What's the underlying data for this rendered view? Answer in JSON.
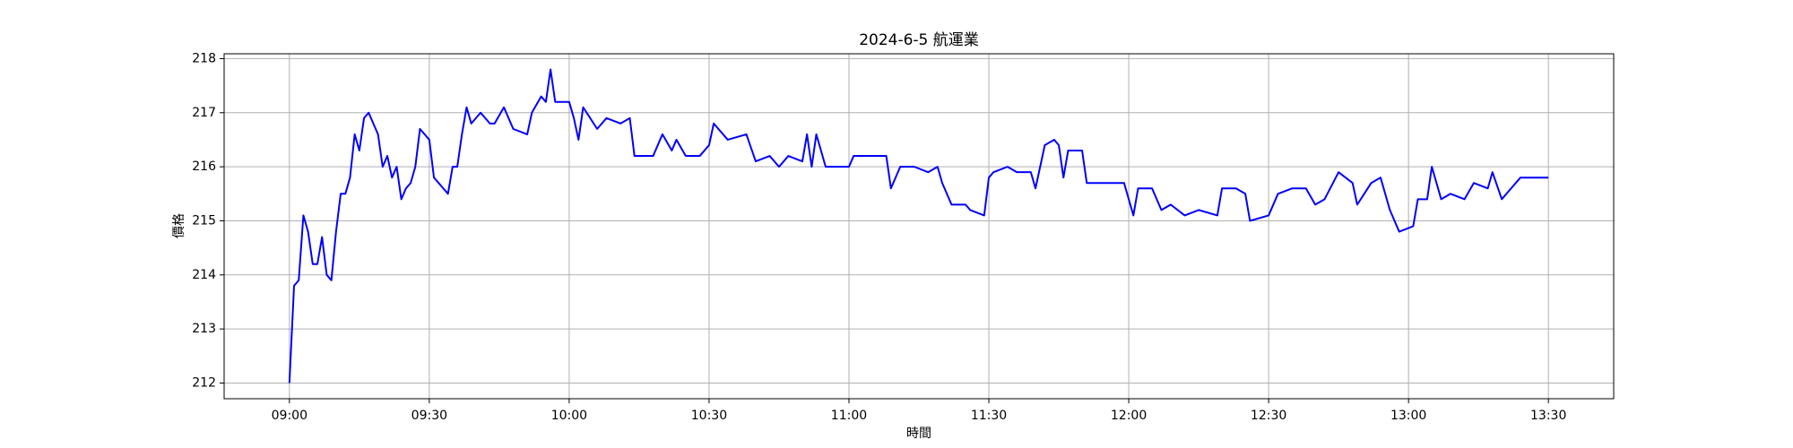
{
  "chart_data": {
    "type": "line",
    "title": "2024-6-5 航運業",
    "x_label": "時間",
    "y_label": "價格",
    "x": [
      "09:00",
      "09:01",
      "09:02",
      "09:03",
      "09:04",
      "09:05",
      "09:06",
      "09:07",
      "09:08",
      "09:09",
      "09:10",
      "09:11",
      "09:12",
      "09:13",
      "09:14",
      "09:15",
      "09:16",
      "09:17",
      "09:18",
      "09:19",
      "09:20",
      "09:21",
      "09:22",
      "09:23",
      "09:24",
      "09:25",
      "09:26",
      "09:27",
      "09:28",
      "09:30",
      "09:31",
      "09:33",
      "09:34",
      "09:35",
      "09:36",
      "09:37",
      "09:38",
      "09:39",
      "09:41",
      "09:43",
      "09:44",
      "09:46",
      "09:48",
      "09:51",
      "09:52",
      "09:54",
      "09:55",
      "09:56",
      "09:57",
      "10:00",
      "10:01",
      "10:02",
      "10:03",
      "10:06",
      "10:08",
      "10:11",
      "10:13",
      "10:14",
      "10:18",
      "10:20",
      "10:22",
      "10:23",
      "10:25",
      "10:28",
      "10:30",
      "10:31",
      "10:34",
      "10:38",
      "10:40",
      "10:43",
      "10:45",
      "10:47",
      "10:50",
      "10:51",
      "10:52",
      "10:53",
      "10:55",
      "11:00",
      "11:01",
      "11:04",
      "11:08",
      "11:09",
      "11:11",
      "11:14",
      "11:17",
      "11:19",
      "11:20",
      "11:22",
      "11:25",
      "11:26",
      "11:29",
      "11:30",
      "11:31",
      "11:34",
      "11:36",
      "11:39",
      "11:40",
      "11:42",
      "11:44",
      "11:45",
      "11:46",
      "11:47",
      "11:50",
      "11:51",
      "11:59",
      "12:01",
      "12:02",
      "12:05",
      "12:07",
      "12:09",
      "12:12",
      "12:15",
      "12:19",
      "12:20",
      "12:23",
      "12:25",
      "12:26",
      "12:30",
      "12:32",
      "12:35",
      "12:38",
      "12:40",
      "12:42",
      "12:45",
      "12:48",
      "12:49",
      "12:52",
      "12:54",
      "12:56",
      "12:58",
      "13:01",
      "13:02",
      "13:04",
      "13:05",
      "13:07",
      "13:09",
      "13:12",
      "13:14",
      "13:17",
      "13:18",
      "13:20",
      "13:22",
      "13:24",
      "13:25",
      "13:30"
    ],
    "series": [
      {
        "color": "#0000ff",
        "values": [
          212.0,
          213.8,
          213.9,
          215.1,
          214.8,
          214.2,
          214.2,
          214.7,
          214.0,
          213.9,
          214.8,
          215.5,
          215.5,
          215.8,
          216.6,
          216.3,
          216.9,
          217.0,
          216.8,
          216.6,
          216.0,
          216.2,
          215.8,
          216.0,
          215.4,
          215.6,
          215.7,
          216.0,
          216.7,
          216.5,
          215.8,
          215.6,
          215.5,
          216.0,
          216.0,
          216.6,
          217.1,
          216.8,
          217.0,
          216.8,
          216.8,
          217.1,
          216.7,
          216.6,
          217.0,
          217.3,
          217.2,
          217.8,
          217.2,
          217.2,
          216.9,
          216.5,
          217.1,
          216.7,
          216.9,
          216.8,
          216.9,
          216.2,
          216.2,
          216.6,
          216.3,
          216.5,
          216.2,
          216.2,
          216.4,
          216.8,
          216.5,
          216.6,
          216.1,
          216.2,
          216.0,
          216.2,
          216.1,
          216.6,
          216.0,
          216.6,
          216.0,
          216.0,
          216.2,
          216.2,
          216.2,
          215.6,
          216.0,
          216.0,
          215.9,
          216.0,
          215.7,
          215.3,
          215.3,
          215.2,
          215.1,
          215.8,
          215.9,
          216.0,
          215.9,
          215.9,
          215.6,
          216.4,
          216.5,
          216.4,
          215.8,
          216.3,
          216.3,
          215.7,
          215.7,
          215.1,
          215.6,
          215.6,
          215.2,
          215.3,
          215.1,
          215.2,
          215.1,
          215.6,
          215.6,
          215.5,
          215.0,
          215.1,
          215.5,
          215.6,
          215.6,
          215.3,
          215.4,
          215.9,
          215.7,
          215.3,
          215.7,
          215.8,
          215.2,
          214.8,
          214.9,
          215.4,
          215.4,
          216.0,
          215.4,
          215.5,
          215.4,
          215.7,
          215.6,
          215.9,
          215.4,
          215.6,
          215.8,
          215.8,
          215.8
        ]
      }
    ],
    "xlim": [
      "08:46",
      "13:44"
    ],
    "xticks": [
      "09:00",
      "09:30",
      "10:00",
      "10:30",
      "11:00",
      "11:30",
      "12:00",
      "12:30",
      "13:00",
      "13:30"
    ],
    "ylim": [
      211.71,
      218.09
    ],
    "yticks": [
      212,
      213,
      214,
      215,
      216,
      217,
      218
    ],
    "grid": true
  }
}
